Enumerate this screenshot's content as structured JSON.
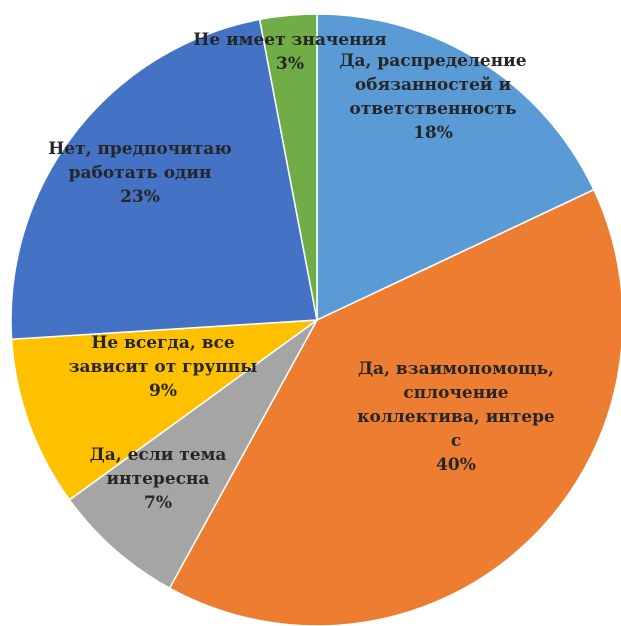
{
  "chart_data": {
    "type": "pie",
    "title": "",
    "slices": [
      {
        "label": [
          "Да, распределение",
          "обязанностей и",
          "ответственность"
        ],
        "value": 18,
        "value_label": "18%",
        "color": "#5B9BD5"
      },
      {
        "label": [
          "Да, взаимопомощь,",
          "сплочение",
          "коллектива, интере",
          "с"
        ],
        "value": 40,
        "value_label": "40%",
        "color": "#ED7D31"
      },
      {
        "label": [
          "Да, если тема",
          "интересна"
        ],
        "value": 7,
        "value_label": "7%",
        "color": "#A5A5A5"
      },
      {
        "label": [
          "Не всегда, все",
          "зависит от группы"
        ],
        "value": 9,
        "value_label": "9%",
        "color": "#FFC000"
      },
      {
        "label": [
          "Нет, предпочитаю",
          "работать один"
        ],
        "value": 23,
        "value_label": "23%",
        "color": "#4472C4"
      },
      {
        "label": [
          "Не имеет значения"
        ],
        "value": 3,
        "value_label": "3%",
        "color": "#70AD47"
      }
    ],
    "start_angle_deg": 0,
    "direction": "clockwise",
    "legend": "none"
  }
}
